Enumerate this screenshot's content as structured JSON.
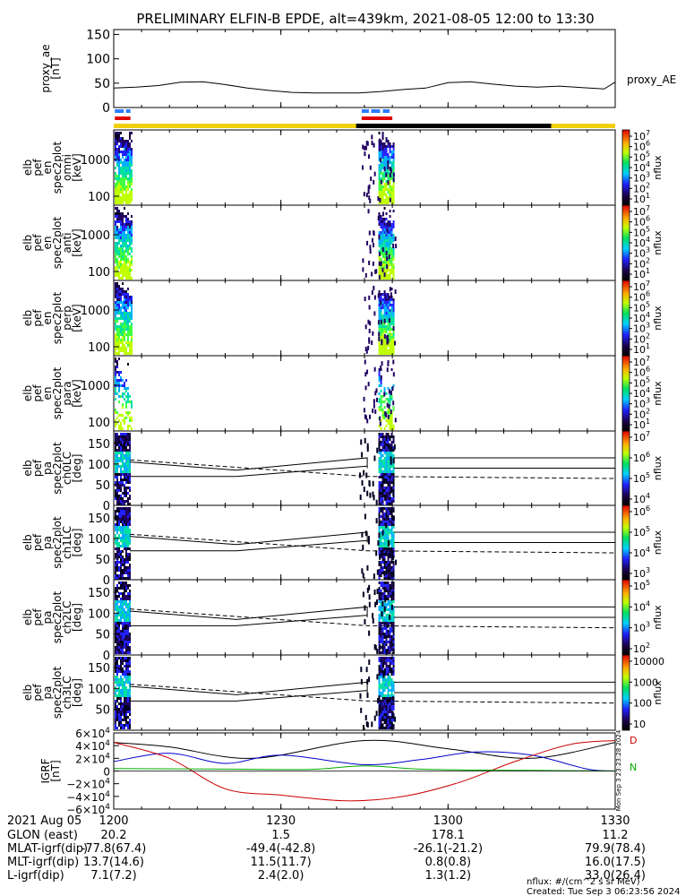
{
  "title": "PRELIMINARY ELFIN-B EPDE, alt=439km, 2021-08-05 12:00 to 13:30",
  "chart_data": {
    "type": "heatmap",
    "time_axis": {
      "date_label": "2021 Aug 05",
      "ticks": [
        "1200",
        "1230",
        "1300",
        "1330"
      ],
      "tick_minutes": [
        0,
        30,
        60,
        90
      ],
      "range_minutes": [
        0,
        90
      ]
    },
    "ephemeris": [
      {
        "label": "GLON (east)",
        "values": [
          "20.2",
          "1.5",
          "178.1",
          "11.2"
        ]
      },
      {
        "label": "MLAT-igrf(dip)",
        "values": [
          "-77.8(67.4)",
          "-49.4(-42.8)",
          "-26.1(-21.2)",
          "79.9(78.4)"
        ]
      },
      {
        "label": "MLT-igrf(dip)",
        "values": [
          "13.7(14.6)",
          "11.5(11.7)",
          "0.8(0.8)",
          "16.0(17.5)"
        ]
      },
      {
        "label": "L-igrf(dip)",
        "values": [
          "7.1(7.2)",
          "2.4(2.0)",
          "1.3(1.2)",
          "33.0(26.4)"
        ]
      }
    ],
    "footer": {
      "units": "nflux: #/(cm^2 s sr MeV)",
      "created": "Created: Tue Sep  3 06:23:56 2024",
      "side_stamp": "Mon Sep  3 23:23:28 2024"
    },
    "proxy_ae": {
      "ylabel": [
        "proxy_ae",
        "[nT]"
      ],
      "yticks": [
        "150",
        "100",
        "50",
        "0"
      ],
      "ylim": [
        0,
        160
      ],
      "legend": "proxy_AE",
      "x": [
        0,
        4,
        8,
        12,
        16,
        20,
        24,
        28,
        32,
        36,
        40,
        44,
        48,
        52,
        56,
        60,
        64,
        68,
        72,
        76,
        80,
        84,
        88,
        90
      ],
      "y": [
        40,
        42,
        45,
        52,
        53,
        47,
        40,
        35,
        31,
        30,
        30,
        30,
        33,
        37,
        40,
        51,
        53,
        48,
        44,
        42,
        44,
        41,
        38,
        52
      ]
    },
    "spectrograms": [
      {
        "ylabel": [
          "elb",
          "pef",
          "en",
          "spec2plot",
          "omni",
          "[keV]"
        ],
        "yticks": [
          "1000",
          "100"
        ],
        "colorbar_ticks": [
          "10^7",
          "10^6",
          "10^5",
          "10^4",
          "10^3",
          "10^2",
          "10^1"
        ],
        "colorbar_label": "nflux"
      },
      {
        "ylabel": [
          "elb",
          "pef",
          "en",
          "spec2plot",
          "anti",
          "[keV]"
        ],
        "yticks": [
          "1000",
          "100"
        ],
        "colorbar_ticks": [
          "10^7",
          "10^6",
          "10^5",
          "10^4",
          "10^3",
          "10^2",
          "10^1"
        ],
        "colorbar_label": "nflux"
      },
      {
        "ylabel": [
          "elb",
          "pef",
          "en",
          "spec2plot",
          "perp",
          "[keV]"
        ],
        "yticks": [
          "1000",
          "100"
        ],
        "colorbar_ticks": [
          "10^7",
          "10^6",
          "10^5",
          "10^4",
          "10^3",
          "10^2",
          "10^1"
        ],
        "colorbar_label": "nflux"
      },
      {
        "ylabel": [
          "elb",
          "pef",
          "en",
          "spec2plot",
          "para",
          "[keV]"
        ],
        "yticks": [
          "1000",
          "100"
        ],
        "colorbar_ticks": [
          "10^7",
          "10^6",
          "10^5",
          "10^4",
          "10^3",
          "10^2",
          "10^1"
        ],
        "colorbar_label": "nflux"
      },
      {
        "ylabel": [
          "elb",
          "pef",
          "pa",
          "spec2plot",
          "ch0LC",
          "[deg]"
        ],
        "yticks": [
          "150",
          "100",
          "50",
          "0"
        ],
        "colorbar_ticks": [
          "10^7",
          "10^6",
          "10^5",
          "10^4"
        ],
        "colorbar_label": "nflux"
      },
      {
        "ylabel": [
          "elb",
          "pef",
          "pa",
          "spec2plot",
          "ch1LC",
          "[deg]"
        ],
        "yticks": [
          "150",
          "100",
          "50",
          "0"
        ],
        "colorbar_ticks": [
          "10^6",
          "10^5",
          "10^4",
          "10^3"
        ],
        "colorbar_label": "nflux"
      },
      {
        "ylabel": [
          "elb",
          "pef",
          "pa",
          "spec2plot",
          "ch2LC",
          "[deg]"
        ],
        "yticks": [
          "150",
          "100",
          "50",
          "0"
        ],
        "colorbar_ticks": [
          "10^5",
          "10^4",
          "10^3",
          "10^2"
        ],
        "colorbar_label": "nflux"
      },
      {
        "ylabel": [
          "elb",
          "pef",
          "pa",
          "spec2plot",
          "ch3LC",
          "[deg]"
        ],
        "yticks": [
          "150",
          "100",
          "50"
        ],
        "colorbar_ticks": [
          "10000",
          "1000",
          "100",
          "10"
        ],
        "colorbar_label": "nflux"
      }
    ],
    "igrf": {
      "ylabel": [
        "IGRF",
        "[nT]"
      ],
      "yticks": [
        "6×10^4",
        "4×10^4",
        "2×10^4",
        "0",
        "−2×10^4",
        "−4×10^4",
        "−6×10^4"
      ],
      "ylim": [
        -60000,
        60000
      ],
      "legend": [
        "D",
        "N"
      ],
      "series": [
        {
          "name": "black",
          "color": "#000000",
          "x": [
            0,
            10,
            25,
            45,
            60,
            75,
            90
          ],
          "y": [
            45000,
            38000,
            20000,
            48000,
            35000,
            20000,
            45000
          ]
        },
        {
          "name": "blue",
          "color": "#0000cc",
          "x": [
            0,
            10,
            20,
            30,
            45,
            55,
            65,
            75,
            85,
            90
          ],
          "y": [
            15000,
            28000,
            12000,
            25000,
            10000,
            18000,
            30000,
            25000,
            3000,
            0
          ]
        },
        {
          "name": "red",
          "color": "#cc0000",
          "x": [
            0,
            10,
            20,
            30,
            42,
            52,
            62,
            72,
            82,
            90
          ],
          "y": [
            45000,
            20000,
            -28000,
            -38000,
            -47000,
            -40000,
            -18000,
            15000,
            42000,
            48000
          ]
        },
        {
          "name": "green",
          "color": "#00aa00",
          "x": [
            0,
            20,
            35,
            45,
            55,
            65,
            75,
            90
          ],
          "y": [
            4000,
            3000,
            2500,
            8000,
            3000,
            1500,
            1000,
            0
          ]
        }
      ]
    }
  }
}
